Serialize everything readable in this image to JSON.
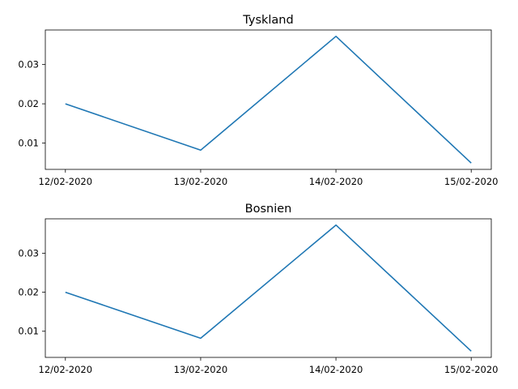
{
  "chart_data": [
    {
      "type": "line",
      "title": "Tyskland",
      "xlabel": "",
      "ylabel": "",
      "categories": [
        "12/02-2020",
        "13/02-2020",
        "14/02-2020",
        "15/02-2020"
      ],
      "series": [
        {
          "values": [
            0.02,
            0.0082,
            0.0372,
            0.0049
          ],
          "color": "#1f77b4"
        }
      ],
      "ylim": [
        0.0033,
        0.0388
      ],
      "yticks": [
        0.01,
        0.02,
        0.03
      ],
      "ytick_labels": [
        "0.01",
        "0.02",
        "0.03"
      ],
      "grid": false,
      "legend": "none"
    },
    {
      "type": "line",
      "title": "Bosnien",
      "xlabel": "",
      "ylabel": "",
      "categories": [
        "12/02-2020",
        "13/02-2020",
        "14/02-2020",
        "15/02-2020"
      ],
      "series": [
        {
          "values": [
            0.02,
            0.0082,
            0.0372,
            0.0049
          ],
          "color": "#1f77b4"
        }
      ],
      "ylim": [
        0.0033,
        0.0388
      ],
      "yticks": [
        0.01,
        0.02,
        0.03
      ],
      "ytick_labels": [
        "0.01",
        "0.02",
        "0.03"
      ],
      "grid": false,
      "legend": "none"
    }
  ]
}
